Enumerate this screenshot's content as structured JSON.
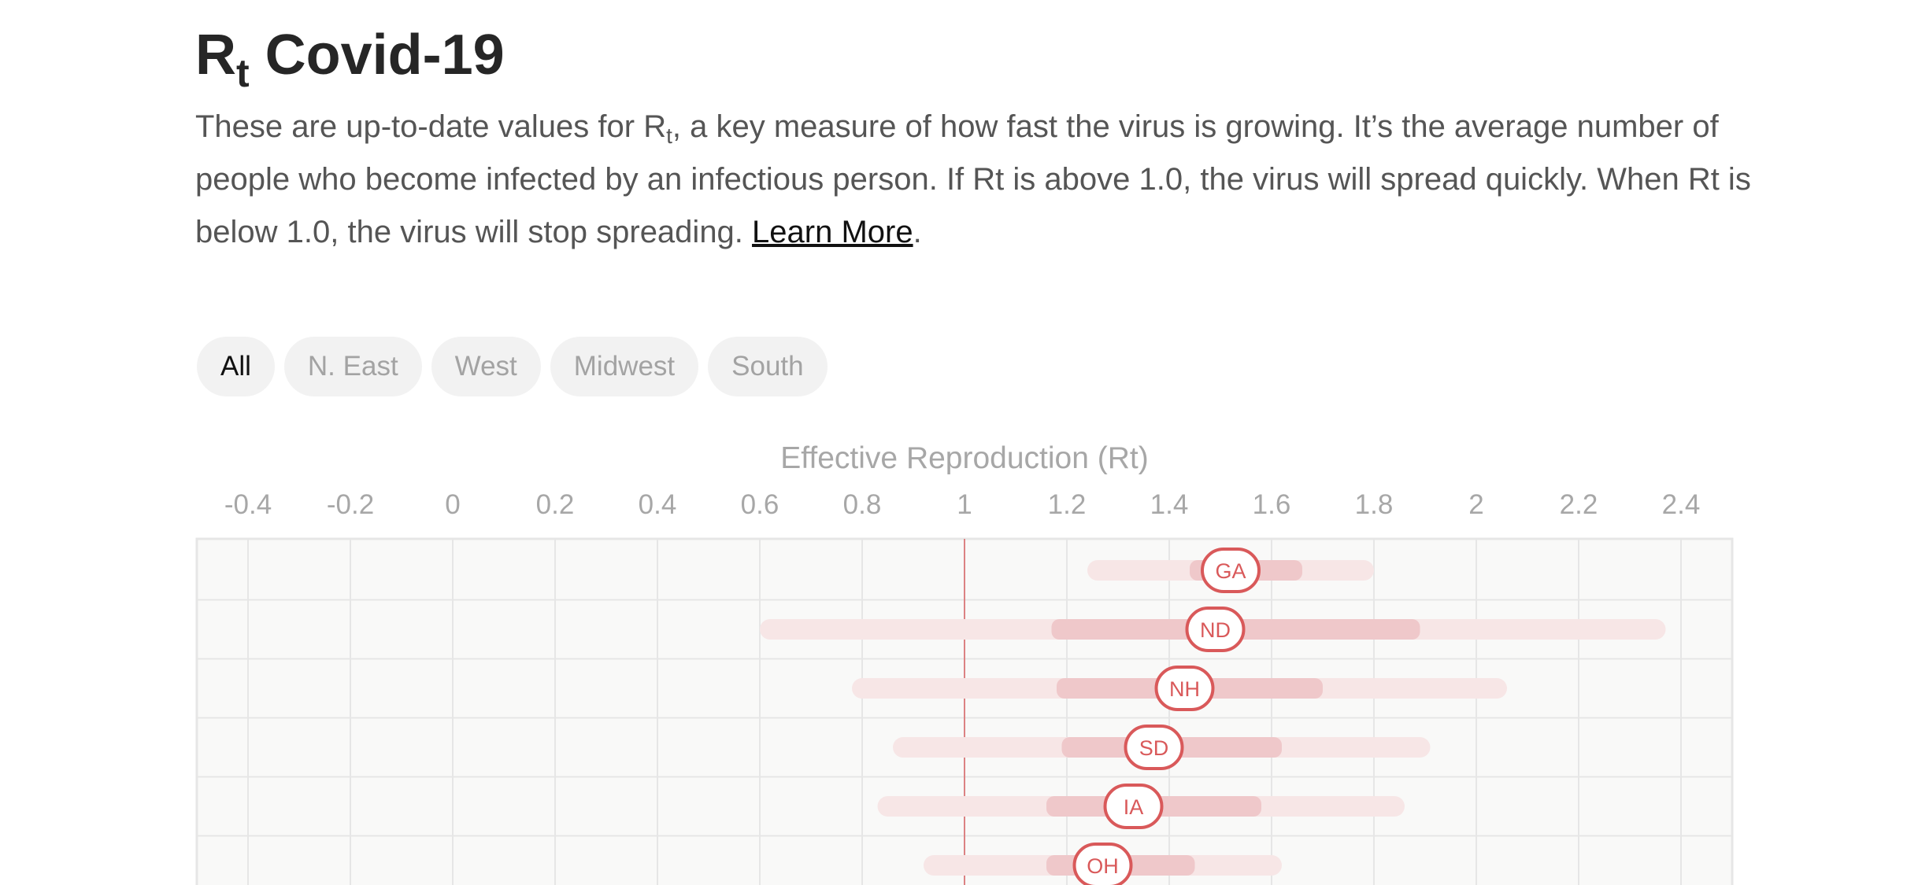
{
  "header": {
    "title_main": "R",
    "title_sub": "t",
    "title_rest": " Covid-19",
    "intro_part1": "These are up-to-date values for R",
    "intro_sub": "t",
    "intro_part2": ", a key measure of how fast the virus is growing. It’s the average number of people who become infected by an infectious person. If Rt is above 1.0, the virus will spread quickly. When Rt is below 1.0, the virus will stop spreading. ",
    "learn_more": "Learn More",
    "intro_end": "."
  },
  "filters": [
    {
      "label": "All",
      "active": true
    },
    {
      "label": "N. East",
      "active": false
    },
    {
      "label": "West",
      "active": false
    },
    {
      "label": "Midwest",
      "active": false
    },
    {
      "label": "South",
      "active": false
    }
  ],
  "colors": {
    "accent": "#d9595a",
    "outer_band": "#f7e6e6",
    "inner_band": "#efc8ca",
    "grid": "#e6e6e6",
    "plot_bg": "#f9f9f8"
  },
  "chart_data": {
    "type": "range-dot",
    "title": "Effective Reproduction (Rt)",
    "x_ticks": [
      "-0.4",
      "-0.2",
      "0",
      "0.2",
      "0.4",
      "0.6",
      "0.8",
      "1",
      "1.2",
      "1.4",
      "1.6",
      "1.8",
      "2",
      "2.2",
      "2.4"
    ],
    "xlim": [
      -0.5,
      2.5
    ],
    "reference_line": 1,
    "series": [
      {
        "label": "GA",
        "value": 1.52,
        "inner": [
          1.44,
          1.66
        ],
        "outer": [
          1.24,
          1.8
        ]
      },
      {
        "label": "ND",
        "value": 1.49,
        "inner": [
          1.17,
          1.89
        ],
        "outer": [
          0.6,
          2.37
        ]
      },
      {
        "label": "NH",
        "value": 1.43,
        "inner": [
          1.18,
          1.7
        ],
        "outer": [
          0.78,
          2.06
        ]
      },
      {
        "label": "SD",
        "value": 1.37,
        "inner": [
          1.19,
          1.62
        ],
        "outer": [
          0.86,
          1.91
        ]
      },
      {
        "label": "IA",
        "value": 1.33,
        "inner": [
          1.16,
          1.58
        ],
        "outer": [
          0.83,
          1.86
        ]
      },
      {
        "label": "OH",
        "value": 1.27,
        "inner": [
          1.16,
          1.45
        ],
        "outer": [
          0.92,
          1.62
        ]
      }
    ]
  }
}
